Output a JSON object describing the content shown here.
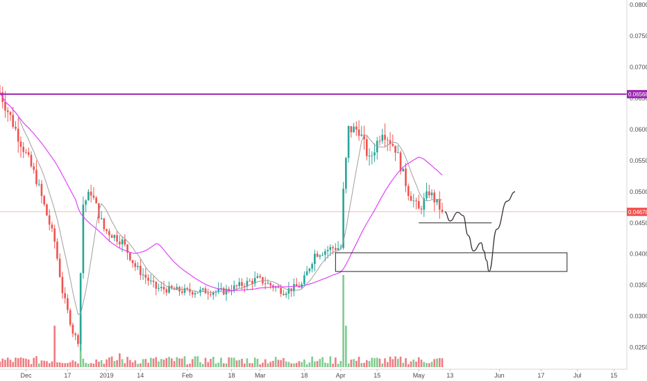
{
  "chart_data": {
    "type": "candlestick",
    "title": "",
    "xlabel": "",
    "ylabel": "",
    "x_tick_labels": [
      "Dec",
      "17",
      "2019",
      "14",
      "Feb",
      "18",
      "Mar",
      "18",
      "Apr",
      "15",
      "May",
      "13",
      "Jun",
      "17",
      "Jul",
      "15"
    ],
    "y_tick_labels": [
      "0.02500",
      "0.03000",
      "0.03500",
      "0.04000",
      "0.04500",
      "0.05000",
      "0.05500",
      "0.06000",
      "0.06500",
      "0.07000",
      "0.07500",
      "0.08000"
    ],
    "ylim": [
      0.0215,
      0.0808
    ],
    "date_range": [
      "2018-11-21",
      "2019-07-20"
    ],
    "last_date": "2019-05-10",
    "resistance": {
      "value": 0.06568,
      "label": "0.06568",
      "color": "#9c27b0"
    },
    "last_price": {
      "value": 0.04678,
      "label": "0.04678",
      "color": "#ef5350"
    },
    "anchors": [
      {
        "date": "2018-11-21",
        "price": 0.066
      },
      {
        "date": "2018-12-05",
        "price": 0.052
      },
      {
        "date": "2018-12-12",
        "price": 0.042
      },
      {
        "date": "2018-12-15",
        "price": 0.034
      },
      {
        "date": "2018-12-19",
        "price": 0.0275
      },
      {
        "date": "2018-12-21",
        "price": 0.026
      },
      {
        "date": "2018-12-23",
        "price": 0.048
      },
      {
        "date": "2018-12-26",
        "price": 0.05
      },
      {
        "date": "2018-12-31",
        "price": 0.044
      },
      {
        "date": "2019-01-07",
        "price": 0.042
      },
      {
        "date": "2019-01-12",
        "price": 0.038
      },
      {
        "date": "2019-01-20",
        "price": 0.0345
      },
      {
        "date": "2019-02-01",
        "price": 0.034
      },
      {
        "date": "2019-02-15",
        "price": 0.034
      },
      {
        "date": "2019-02-28",
        "price": 0.036
      },
      {
        "date": "2019-03-10",
        "price": 0.034
      },
      {
        "date": "2019-03-17",
        "price": 0.035
      },
      {
        "date": "2019-03-22",
        "price": 0.04
      },
      {
        "date": "2019-03-29",
        "price": 0.041
      },
      {
        "date": "2019-04-01",
        "price": 0.041
      },
      {
        "date": "2019-04-02",
        "price": 0.05
      },
      {
        "date": "2019-04-04",
        "price": 0.06
      },
      {
        "date": "2019-04-08",
        "price": 0.06
      },
      {
        "date": "2019-04-12",
        "price": 0.055
      },
      {
        "date": "2019-04-17",
        "price": 0.06
      },
      {
        "date": "2019-04-22",
        "price": 0.057
      },
      {
        "date": "2019-04-27",
        "price": 0.05
      },
      {
        "date": "2019-05-01",
        "price": 0.047
      },
      {
        "date": "2019-05-05",
        "price": 0.05
      },
      {
        "date": "2019-05-10",
        "price": 0.0468
      }
    ],
    "colors": {
      "up": "#26a69a",
      "down": "#ef5350",
      "vol_up": "#7fcb8f",
      "vol_down": "#ef7c82",
      "ma_fast": "#9e9e9e",
      "ma_slow": "#e040fb"
    },
    "annotations": {
      "support_line": {
        "from": [
          "2019-05-01",
          0.045
        ],
        "to": [
          "2019-05-29",
          0.045
        ]
      },
      "demand_box": {
        "from": [
          "2019-03-30",
          0.0402
        ],
        "to": [
          "2019-06-27",
          0.0372
        ]
      },
      "projection_path": [
        [
          "2019-05-11",
          0.0468
        ],
        [
          "2019-05-13",
          0.0453
        ],
        [
          "2019-05-16",
          0.0467
        ],
        [
          "2019-05-18",
          0.0462
        ],
        [
          "2019-05-20",
          0.043
        ],
        [
          "2019-05-22",
          0.0405
        ],
        [
          "2019-05-25",
          0.0418
        ],
        [
          "2019-05-26",
          0.0405
        ],
        [
          "2019-05-27",
          0.039
        ],
        [
          "2019-05-28",
          0.0372
        ],
        [
          "2019-05-31",
          0.044
        ],
        [
          "2019-06-04",
          0.0485
        ],
        [
          "2019-06-07",
          0.05
        ]
      ]
    },
    "volume_spikes": [
      {
        "date": "2018-12-12",
        "level": 0.45
      },
      {
        "date": "2018-12-22",
        "level": 0.55
      },
      {
        "date": "2019-01-06",
        "level": 0.15
      },
      {
        "date": "2019-04-02",
        "level": 1.0
      },
      {
        "date": "2019-04-03",
        "level": 0.45
      }
    ],
    "grid": false
  }
}
